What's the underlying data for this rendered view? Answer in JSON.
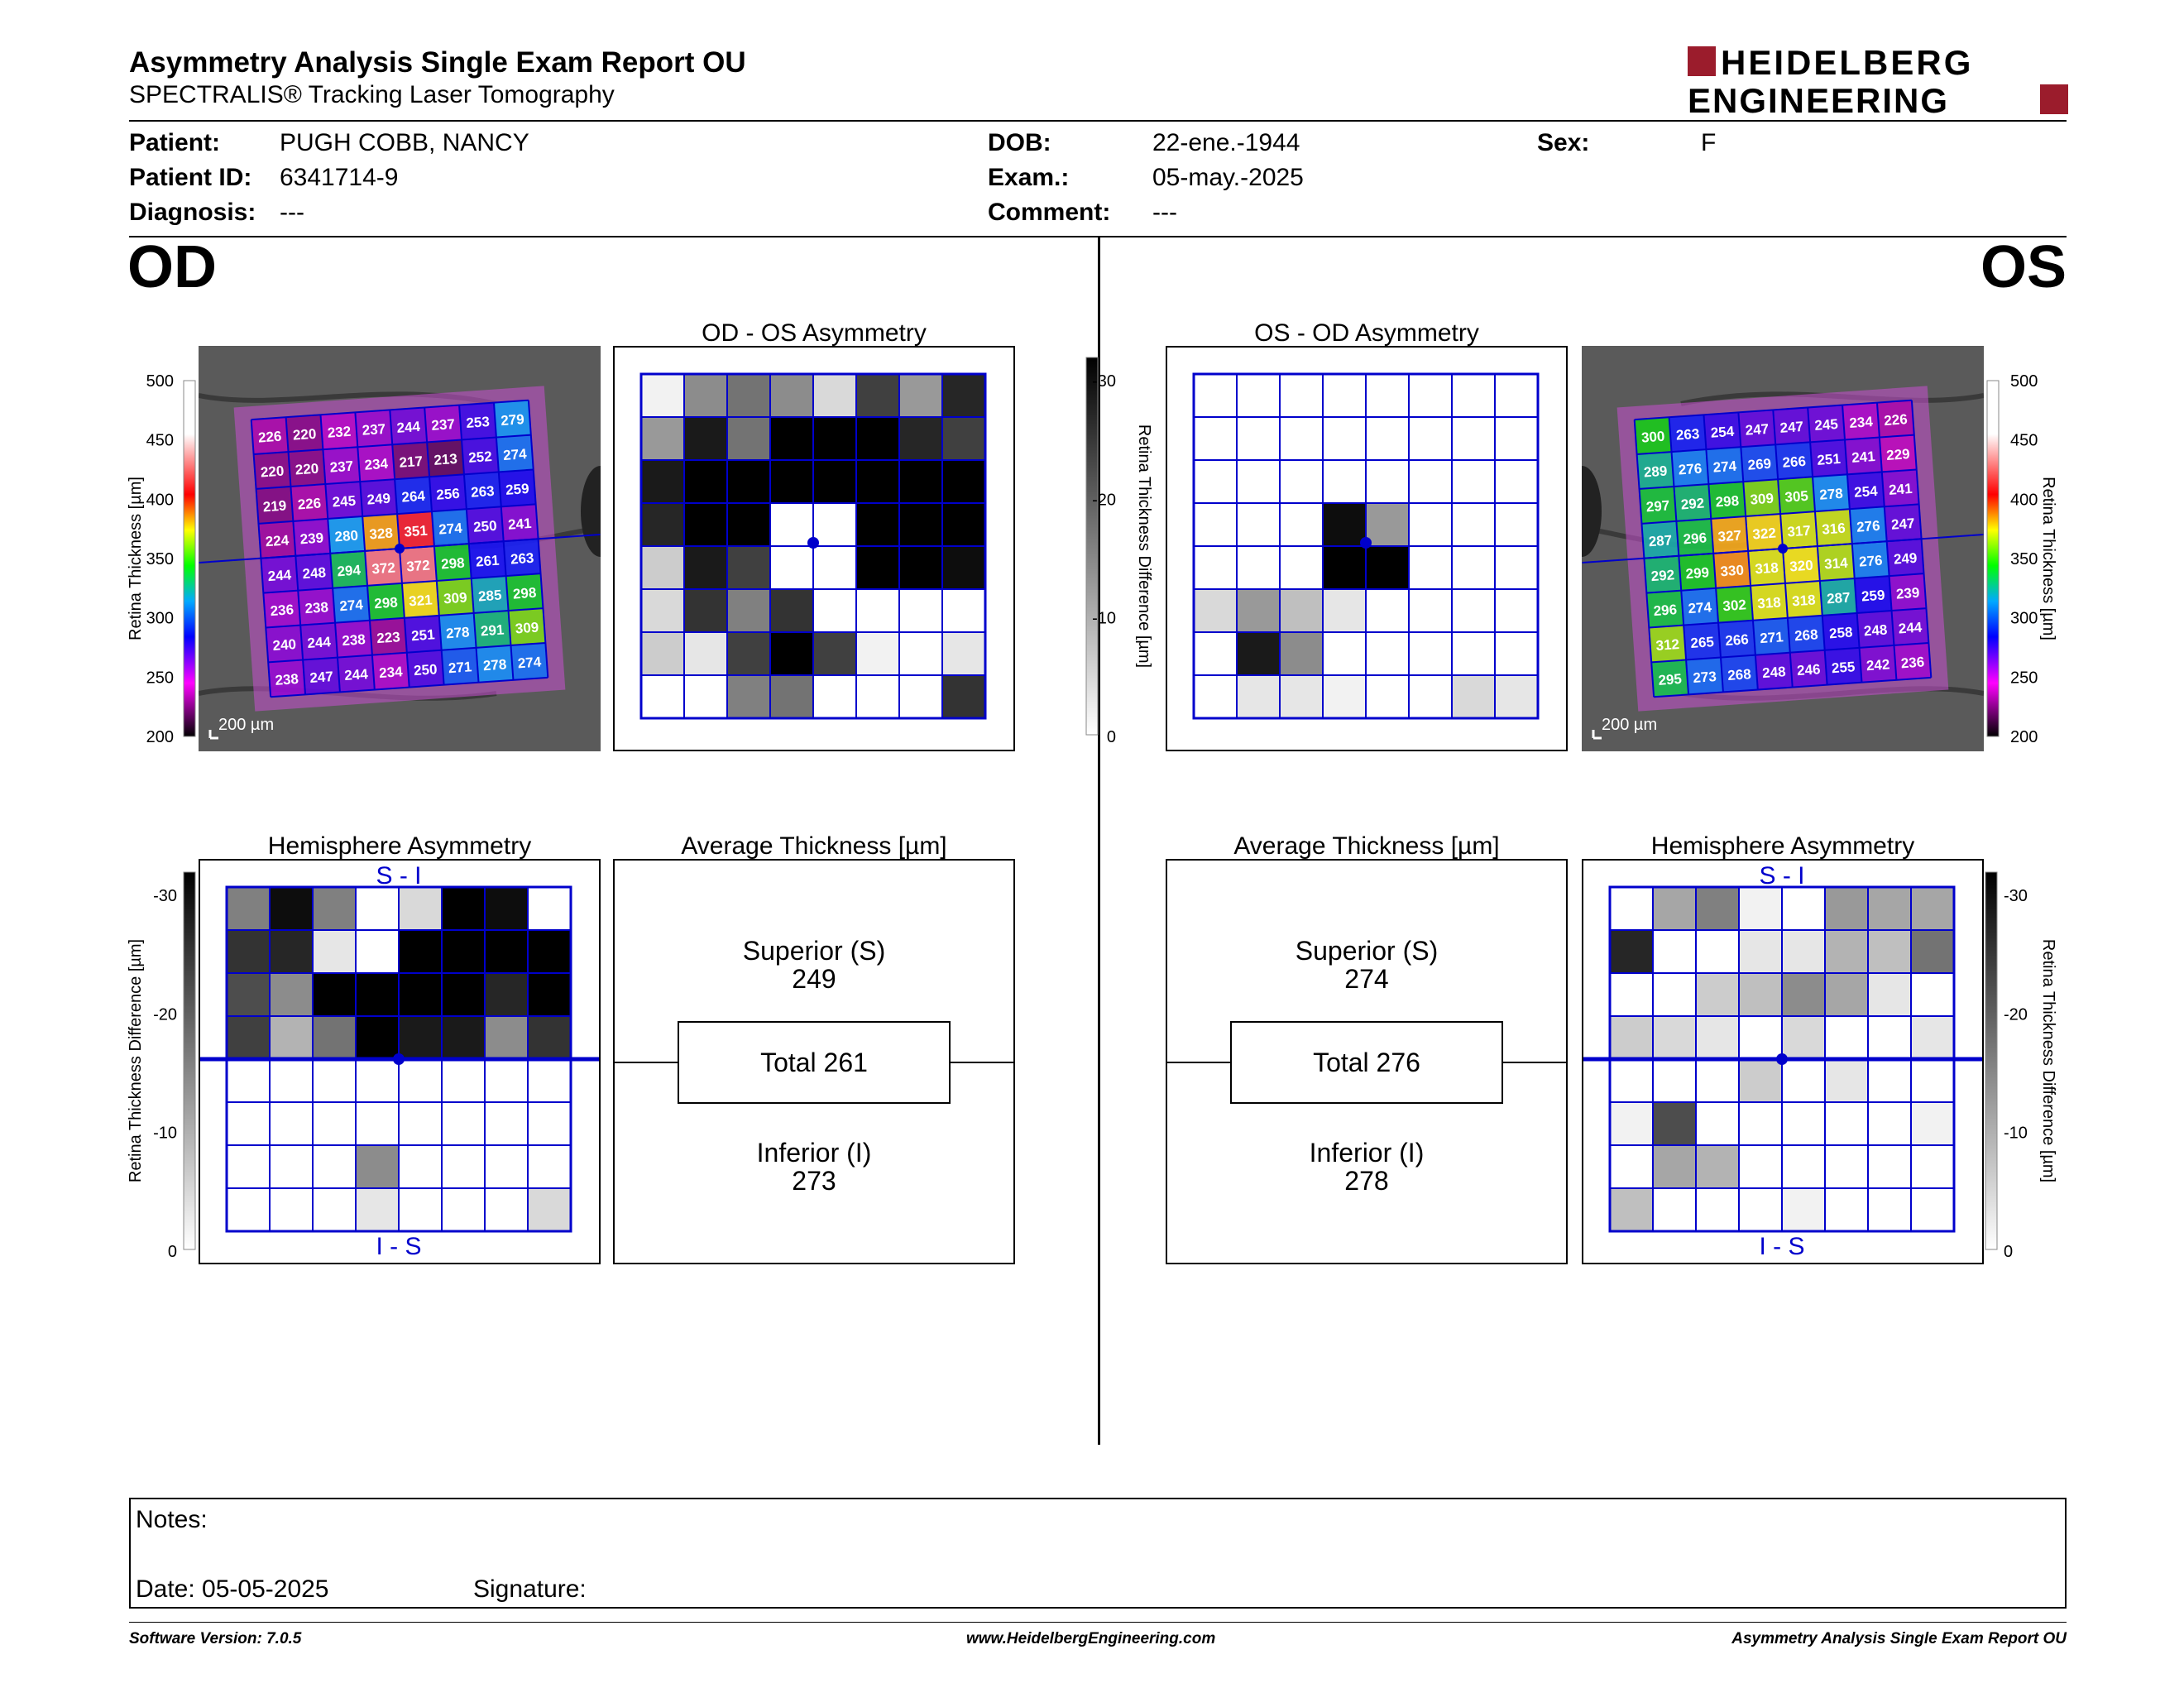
{
  "header": {
    "title": "Asymmetry Analysis Single Exam Report OU",
    "subtitle": "SPECTRALIS® Tracking Laser Tomography",
    "logo_line1": "HEIDELBERG",
    "logo_line2": "ENGINEERING",
    "brand_color": "#9b1c2c"
  },
  "patient": {
    "patient_label": "Patient:",
    "patient_value": "PUGH COBB, NANCY",
    "id_label": "Patient ID:",
    "id_value": "6341714-9",
    "diagnosis_label": "Diagnosis:",
    "diagnosis_value": "---",
    "dob_label": "DOB:",
    "dob_value": "22-ene.-1944",
    "exam_label": "Exam.:",
    "exam_value": "05-may.-2025",
    "comment_label": "Comment:",
    "comment_value": "---",
    "sex_label": "Sex:",
    "sex_value": "F"
  },
  "od": {
    "eye_label": "OD",
    "asym_title": "OD - OS Asymmetry",
    "hemi_title": "Hemisphere Asymmetry",
    "avg_title": "Average Thickness [µm]",
    "superior_label": "Superior (S)",
    "superior_value": "249",
    "total_label": "Total 261",
    "inferior_label": "Inferior (I)",
    "inferior_value": "273",
    "scale_text": "200 µm",
    "thickness_grid": [
      [
        226,
        220,
        232,
        237,
        244,
        237,
        253,
        279
      ],
      [
        220,
        220,
        237,
        234,
        217,
        213,
        252,
        274
      ],
      [
        219,
        226,
        245,
        249,
        264,
        256,
        263,
        259
      ],
      [
        224,
        239,
        280,
        328,
        351,
        274,
        250,
        241
      ],
      [
        244,
        248,
        294,
        372,
        372,
        298,
        261,
        263
      ],
      [
        236,
        238,
        274,
        298,
        321,
        309,
        285,
        298
      ],
      [
        240,
        244,
        238,
        223,
        251,
        278,
        291,
        309
      ],
      [
        238,
        247,
        244,
        234,
        250,
        271,
        278,
        274
      ]
    ],
    "asym_grid": [
      [
        5,
        45,
        55,
        45,
        15,
        75,
        40,
        85
      ],
      [
        40,
        90,
        55,
        100,
        100,
        100,
        85,
        75
      ],
      [
        90,
        100,
        100,
        100,
        100,
        100,
        100,
        100
      ],
      [
        85,
        100,
        100,
        0,
        0,
        100,
        100,
        100
      ],
      [
        20,
        90,
        75,
        0,
        0,
        100,
        100,
        95
      ],
      [
        15,
        80,
        50,
        80,
        0,
        0,
        0,
        0
      ],
      [
        20,
        10,
        75,
        100,
        75,
        5,
        0,
        10
      ],
      [
        0,
        0,
        50,
        55,
        0,
        0,
        0,
        80
      ]
    ],
    "hemi_grid": [
      [
        50,
        95,
        50,
        0,
        15,
        100,
        95,
        0
      ],
      [
        80,
        85,
        10,
        0,
        100,
        100,
        100,
        100
      ],
      [
        70,
        45,
        100,
        100,
        100,
        100,
        85,
        100
      ],
      [
        75,
        30,
        55,
        100,
        90,
        90,
        45,
        80
      ],
      [
        0,
        0,
        0,
        0,
        0,
        0,
        0,
        0
      ],
      [
        0,
        0,
        0,
        0,
        0,
        0,
        0,
        0
      ],
      [
        0,
        0,
        0,
        45,
        0,
        0,
        0,
        0
      ],
      [
        0,
        0,
        0,
        10,
        0,
        0,
        0,
        15
      ]
    ],
    "hemi_top": "S - I",
    "hemi_bottom": "I - S"
  },
  "os": {
    "eye_label": "OS",
    "asym_title": "OS - OD Asymmetry",
    "hemi_title": "Hemisphere Asymmetry",
    "avg_title": "Average Thickness [µm]",
    "superior_label": "Superior (S)",
    "superior_value": "274",
    "total_label": "Total 276",
    "inferior_label": "Inferior (I)",
    "inferior_value": "278",
    "scale_text": "200 µm",
    "thickness_grid": [
      [
        300,
        263,
        254,
        247,
        247,
        245,
        234,
        226
      ],
      [
        289,
        276,
        274,
        269,
        266,
        251,
        241,
        229
      ],
      [
        297,
        292,
        298,
        309,
        305,
        278,
        254,
        241
      ],
      [
        287,
        296,
        327,
        322,
        317,
        316,
        276,
        247
      ],
      [
        292,
        299,
        330,
        318,
        320,
        314,
        276,
        249
      ],
      [
        296,
        274,
        302,
        318,
        318,
        287,
        259,
        239
      ],
      [
        312,
        265,
        266,
        271,
        268,
        258,
        248,
        244
      ],
      [
        295,
        273,
        268,
        248,
        246,
        255,
        242,
        236
      ]
    ],
    "asym_grid": [
      [
        0,
        0,
        0,
        0,
        0,
        0,
        0,
        0
      ],
      [
        0,
        0,
        0,
        0,
        0,
        0,
        0,
        0
      ],
      [
        0,
        0,
        0,
        0,
        0,
        0,
        0,
        0
      ],
      [
        0,
        0,
        0,
        95,
        40,
        0,
        0,
        0
      ],
      [
        0,
        0,
        0,
        100,
        100,
        0,
        0,
        0
      ],
      [
        15,
        40,
        25,
        10,
        0,
        0,
        0,
        0
      ],
      [
        0,
        90,
        45,
        0,
        0,
        0,
        0,
        0
      ],
      [
        0,
        10,
        10,
        5,
        0,
        0,
        15,
        10
      ]
    ],
    "hemi_grid": [
      [
        0,
        35,
        50,
        5,
        0,
        40,
        35,
        35
      ],
      [
        85,
        0,
        0,
        10,
        10,
        30,
        25,
        55
      ],
      [
        0,
        0,
        20,
        25,
        45,
        35,
        10,
        0
      ],
      [
        20,
        15,
        10,
        0,
        15,
        0,
        0,
        10
      ],
      [
        0,
        0,
        0,
        20,
        0,
        10,
        0,
        0
      ],
      [
        5,
        70,
        0,
        0,
        0,
        0,
        0,
        5
      ],
      [
        0,
        35,
        30,
        0,
        0,
        0,
        0,
        0
      ],
      [
        25,
        0,
        0,
        0,
        5,
        0,
        0,
        0
      ]
    ],
    "hemi_top": "S - I",
    "hemi_bottom": "I - S"
  },
  "axes": {
    "thickness_label": "Retina Thickness [µm]",
    "thickness_ticks": [
      "500",
      "450",
      "400",
      "350",
      "300",
      "250",
      "200"
    ],
    "diff_label": "Retina Thickness Difference [µm]",
    "diff_ticks": [
      "-30",
      "-20",
      "-10",
      "0"
    ]
  },
  "notes": {
    "notes_label": "Notes:",
    "date_label": "Date: 05-05-2025",
    "signature_label": "Signature:"
  },
  "footer": {
    "software": "Software Version: 7.0.5",
    "website": "www.HeidelbergEngineering.com",
    "report": "Asymmetry Analysis Single Exam Report OU"
  },
  "colors": {
    "grid_line": "#0000cc",
    "fundus_bg": "#5a5a5a"
  }
}
